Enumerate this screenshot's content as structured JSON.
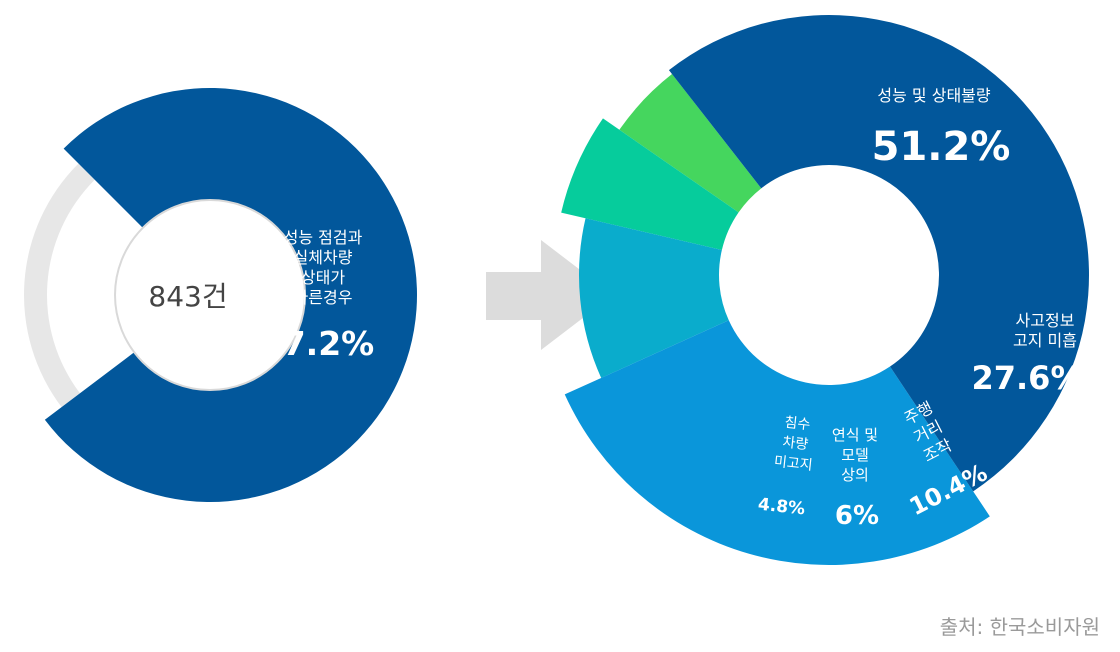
{
  "source": "출처: 한국소비자원",
  "chart_data": [
    {
      "type": "pie",
      "center_label": "843건",
      "slices": [
        {
          "label_lines": [
            "성능 점검과",
            "실체차량",
            "상태가",
            "다른경우"
          ],
          "value_label": "77.2%",
          "value": 77.2,
          "color": "#02579b"
        },
        {
          "label_lines": [],
          "value_label": "",
          "value": 22.8,
          "color": "#e7e7e7"
        }
      ]
    },
    {
      "type": "pie",
      "slices": [
        {
          "label_lines": [
            "성능 및 상태불량"
          ],
          "value_label": "51.2%",
          "value": 51.2,
          "color": "#02579b"
        },
        {
          "label_lines": [
            "사고정보",
            "고지 미흡"
          ],
          "value_label": "27.6%",
          "value": 27.6,
          "color": "#0a96da"
        },
        {
          "label_lines": [
            "주행",
            "거리",
            "조작"
          ],
          "value_label": "10.4%",
          "value": 10.4,
          "color": "#0aaccc"
        },
        {
          "label_lines": [
            "연식 및",
            "모델",
            "상의"
          ],
          "value_label": "6%",
          "value": 6,
          "color": "#06cc9c"
        },
        {
          "label_lines": [
            "침수",
            "차량",
            "미고지"
          ],
          "value_label": "4.8%",
          "value": 4.8,
          "color": "#45d65e"
        }
      ]
    }
  ],
  "arrow_color": "#dcdcdc"
}
